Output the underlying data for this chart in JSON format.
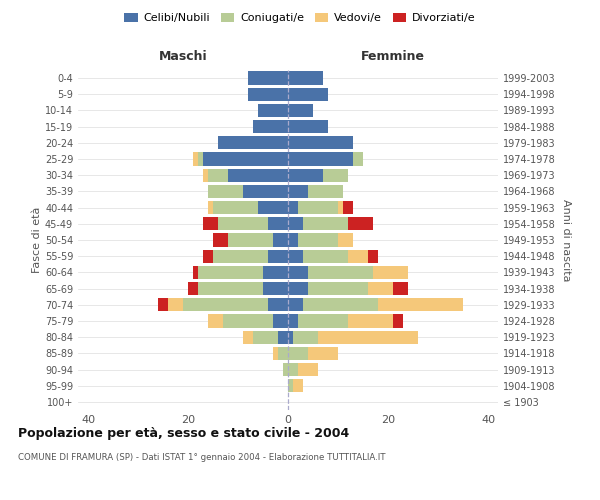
{
  "age_groups": [
    "100+",
    "95-99",
    "90-94",
    "85-89",
    "80-84",
    "75-79",
    "70-74",
    "65-69",
    "60-64",
    "55-59",
    "50-54",
    "45-49",
    "40-44",
    "35-39",
    "30-34",
    "25-29",
    "20-24",
    "15-19",
    "10-14",
    "5-9",
    "0-4"
  ],
  "birth_years": [
    "≤ 1903",
    "1904-1908",
    "1909-1913",
    "1914-1918",
    "1919-1923",
    "1924-1928",
    "1929-1933",
    "1934-1938",
    "1939-1943",
    "1944-1948",
    "1949-1953",
    "1954-1958",
    "1959-1963",
    "1964-1968",
    "1969-1973",
    "1974-1978",
    "1979-1983",
    "1984-1988",
    "1989-1993",
    "1994-1998",
    "1999-2003"
  ],
  "maschi": {
    "celibi": [
      0,
      0,
      0,
      0,
      2,
      3,
      4,
      5,
      5,
      4,
      3,
      4,
      6,
      9,
      12,
      17,
      14,
      7,
      6,
      8,
      8
    ],
    "coniugati": [
      0,
      0,
      1,
      2,
      5,
      10,
      17,
      13,
      13,
      11,
      9,
      10,
      9,
      7,
      4,
      1,
      0,
      0,
      0,
      0,
      0
    ],
    "vedovi": [
      0,
      0,
      0,
      1,
      2,
      3,
      3,
      0,
      0,
      0,
      0,
      0,
      1,
      0,
      1,
      1,
      0,
      0,
      0,
      0,
      0
    ],
    "divorziati": [
      0,
      0,
      0,
      0,
      0,
      0,
      2,
      2,
      1,
      2,
      3,
      3,
      0,
      0,
      0,
      0,
      0,
      0,
      0,
      0,
      0
    ]
  },
  "femmine": {
    "nubili": [
      0,
      0,
      0,
      0,
      1,
      2,
      3,
      4,
      4,
      3,
      2,
      3,
      2,
      4,
      7,
      13,
      13,
      8,
      5,
      8,
      7
    ],
    "coniugate": [
      0,
      1,
      2,
      4,
      5,
      10,
      15,
      12,
      13,
      9,
      8,
      9,
      8,
      7,
      5,
      2,
      0,
      0,
      0,
      0,
      0
    ],
    "vedove": [
      0,
      2,
      4,
      6,
      20,
      9,
      17,
      5,
      7,
      4,
      3,
      0,
      1,
      0,
      0,
      0,
      0,
      0,
      0,
      0,
      0
    ],
    "divorziate": [
      0,
      0,
      0,
      0,
      0,
      2,
      0,
      3,
      0,
      2,
      0,
      5,
      2,
      0,
      0,
      0,
      0,
      0,
      0,
      0,
      0
    ]
  },
  "colors": {
    "celibi": "#4a72a8",
    "coniugati": "#b8cc96",
    "vedovi": "#f5c87a",
    "divorziati": "#cc2222"
  },
  "xlim": 42,
  "title": "Popolazione per età, sesso e stato civile - 2004",
  "subtitle": "COMUNE DI FRAMURA (SP) - Dati ISTAT 1° gennaio 2004 - Elaborazione TUTTITALIA.IT",
  "ylabel_left": "Fasce di età",
  "ylabel_right": "Anni di nascita",
  "xlabel_left": "Maschi",
  "xlabel_right": "Femmine",
  "legend_labels": [
    "Celibi/Nubili",
    "Coniugati/e",
    "Vedovi/e",
    "Divorziati/e"
  ],
  "bg_color": "#ffffff",
  "grid_color": "#dddddd",
  "text_color": "#555555",
  "title_color": "#111111"
}
